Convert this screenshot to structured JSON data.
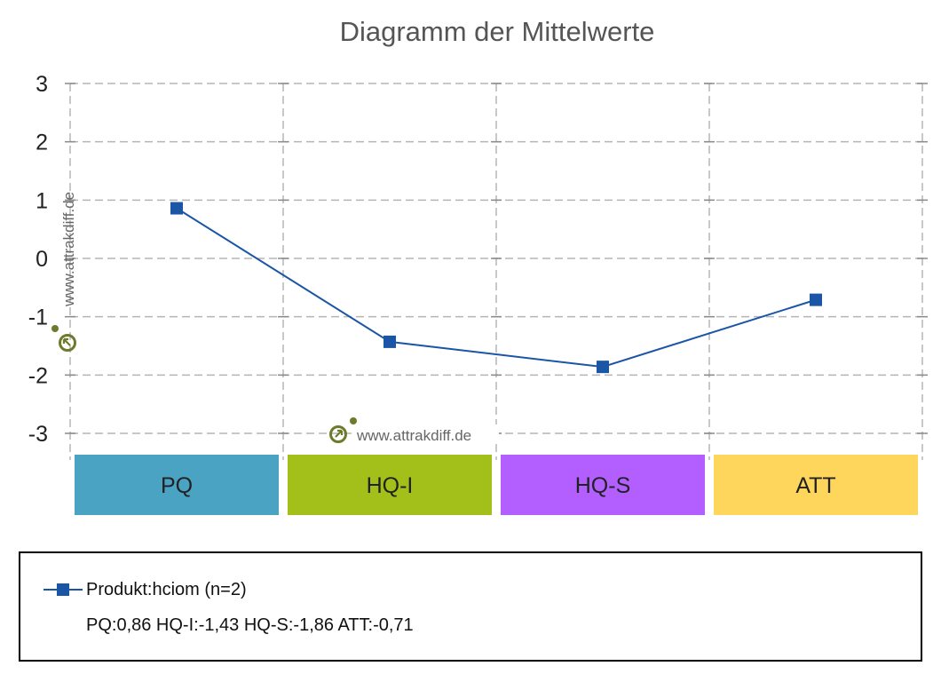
{
  "title": "Diagramm der Mittelwerte",
  "chart_data": {
    "type": "line",
    "categories": [
      "PQ",
      "HQ-I",
      "HQ-S",
      "ATT"
    ],
    "category_colors": [
      "#4aa3c2",
      "#a2bf1a",
      "#b35eff",
      "#ffd65c"
    ],
    "series": [
      {
        "name": "Produkt:hciom (n=2)",
        "values": [
          0.86,
          -1.43,
          -1.86,
          -0.71
        ],
        "color": "#1a55a6"
      }
    ],
    "ylim": [
      -3,
      3
    ],
    "yticks": [
      3,
      2,
      1,
      0,
      -1,
      -2,
      -3
    ],
    "grid": true,
    "grid_style": "dashed"
  },
  "legend": {
    "series_label": "Produkt:hciom (n=2)",
    "summary": "PQ:0,86 HQ-I:-1,43 HQ-S:-1,86 ATT:-0,71"
  },
  "watermarks": [
    "www.attrakdiff.de",
    "www.attrakdiff.de"
  ],
  "colors": {
    "watermark_icon": "#6e7a2b",
    "grid": "#b5b5b5",
    "line": "#1a55a6"
  }
}
